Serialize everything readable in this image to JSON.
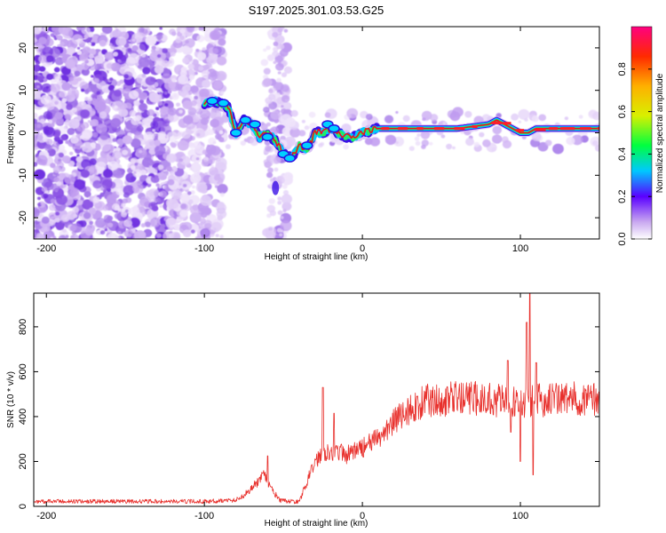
{
  "title": "S197.2025.301.03.53.G25",
  "colors": {
    "snr_line": "#e8302c",
    "frame": "#000000",
    "ridge_core": "#e8141e",
    "speckle": "#7a2ee0"
  },
  "chart_data": [
    {
      "type": "heatmap",
      "name": "spectrogram",
      "xlabel": "Height of straight line (km)",
      "ylabel": "Frequency (Hz)",
      "xlim": [
        -208,
        150
      ],
      "ylim": [
        -25,
        25
      ],
      "x_ticks": [
        -200,
        -100,
        0,
        100
      ],
      "y_ticks": [
        -20,
        -10,
        0,
        10,
        20
      ],
      "ridge": {
        "x": [
          -100,
          -95,
          -90,
          -85,
          -80,
          -75,
          -70,
          -65,
          -60,
          -55,
          -50,
          -45,
          -40,
          -35,
          -30,
          -25,
          -20,
          -15,
          -10,
          -5,
          0,
          10,
          20,
          40,
          60,
          80,
          85,
          90,
          95,
          100,
          105,
          110,
          150
        ],
        "freq_hz": [
          7,
          7.5,
          7,
          6,
          0,
          3,
          2,
          -1,
          0,
          -2,
          -5,
          -6,
          -3,
          -4,
          0,
          0,
          1,
          0,
          -1,
          -1,
          0,
          1,
          1,
          1,
          1,
          2,
          3,
          2,
          1,
          0,
          0,
          1,
          1
        ]
      },
      "colorbar": {
        "label": "Normalized spectral amplitude",
        "range": [
          0,
          1
        ],
        "ticks": [
          "0.0",
          "0.2",
          "0.4",
          "0.6",
          "0.8"
        ],
        "tick_values": [
          0,
          0.2,
          0.4,
          0.6,
          0.8
        ]
      }
    },
    {
      "type": "line",
      "name": "snr",
      "xlabel": "Height of straight line (km)",
      "ylabel": "SNR (10 * v/v)",
      "xlim": [
        -208,
        150
      ],
      "ylim": [
        0,
        950
      ],
      "x_ticks": [
        -200,
        -100,
        0,
        100
      ],
      "y_ticks": [
        0,
        200,
        400,
        600,
        800
      ],
      "envelope_x": [
        -208,
        -100,
        -80,
        -75,
        -68,
        -62,
        -58,
        -52,
        -40,
        -35,
        -30,
        -25,
        -20,
        -10,
        0,
        10,
        20,
        30,
        40,
        60,
        80,
        90,
        100,
        110,
        120,
        150
      ],
      "envelope_y": [
        22,
        22,
        28,
        50,
        95,
        140,
        80,
        25,
        20,
        110,
        200,
        240,
        250,
        230,
        260,
        300,
        380,
        430,
        470,
        480,
        480,
        470,
        460,
        470,
        480,
        480
      ],
      "spikes": [
        {
          "x": -60,
          "y": 225
        },
        {
          "x": -25,
          "y": 530
        },
        {
          "x": -18,
          "y": 415
        },
        {
          "x": 92,
          "y": 650
        },
        {
          "x": 94,
          "y": 330
        },
        {
          "x": 100,
          "y": 200
        },
        {
          "x": 104,
          "y": 820
        },
        {
          "x": 106,
          "y": 960
        },
        {
          "x": 108,
          "y": 140
        },
        {
          "x": 110,
          "y": 640
        }
      ]
    }
  ]
}
